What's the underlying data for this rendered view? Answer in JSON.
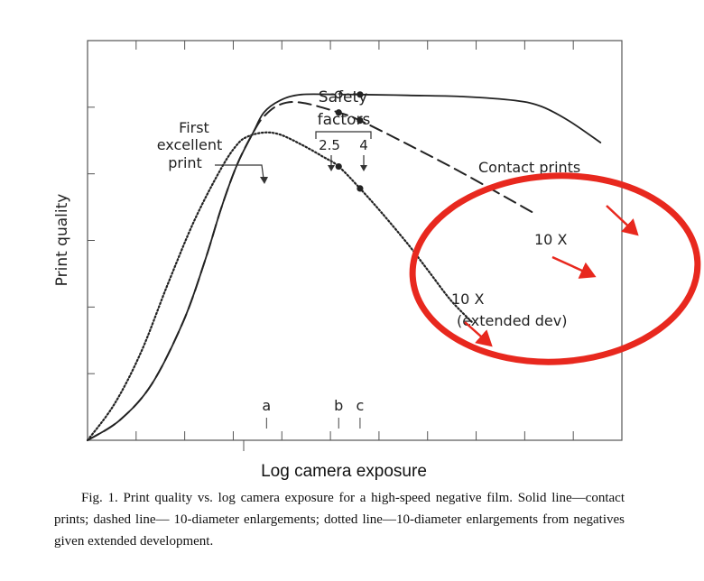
{
  "chart_data": {
    "type": "line",
    "xlabel": "Log camera exposure",
    "ylabel": "Print quality",
    "xlim": [
      0,
      100
    ],
    "ylim": [
      0,
      100
    ],
    "x_markers": [
      {
        "label": "a",
        "x": 33.5
      },
      {
        "label": "b",
        "x": 47
      },
      {
        "label": "c",
        "x": 51
      }
    ],
    "safety_factors": {
      "title_line1": "Safety",
      "title_line2": "factors",
      "values": [
        "2.5",
        "4"
      ]
    },
    "first_print_note": {
      "line1": "First",
      "line2": "excellent",
      "line3": "print"
    },
    "series": [
      {
        "name": "Contact prints",
        "style": "solid",
        "x": [
          0,
          6,
          12,
          18,
          22,
          25,
          28,
          31,
          33,
          36,
          40,
          47,
          51,
          60,
          70,
          80,
          85,
          90,
          96
        ],
        "y": [
          0,
          5,
          14,
          30,
          45,
          58,
          69,
          77,
          82,
          85,
          86.5,
          86.5,
          86.5,
          86.3,
          86,
          85,
          83.5,
          80,
          74.5
        ]
      },
      {
        "name": "10 X",
        "style": "dashed",
        "x": [
          0,
          6,
          12,
          18,
          22,
          25,
          28,
          31,
          33,
          36,
          40,
          47,
          51,
          60,
          70,
          80,
          84
        ],
        "y": [
          0,
          5,
          14,
          30,
          45,
          58,
          69,
          77,
          81,
          84,
          84.5,
          82,
          80,
          74,
          67,
          59.5,
          56.5
        ]
      },
      {
        "name": "10 X\n(extended dev)",
        "style": "dotted",
        "x": [
          0,
          5,
          10,
          15,
          20,
          25,
          28,
          30,
          33,
          36,
          40,
          44,
          47,
          51,
          55,
          60,
          64,
          68,
          72
        ],
        "y": [
          0,
          9,
          22,
          39,
          55,
          68,
          74,
          76,
          77,
          76.5,
          74,
          71,
          68.5,
          63,
          57,
          49,
          42,
          35,
          29.5
        ]
      }
    ],
    "series_labels": [
      "Contact prints",
      "10 X",
      "10 X",
      "(extended dev)"
    ]
  },
  "caption": "Fig. 1. Print quality vs. log camera exposure for a high-speed negative film. Solid line—contact prints; dashed line— 10-diameter enlargements; dotted line—10-diameter enlargements from negatives given extended development.",
  "annotation": {
    "color": "#e8281e",
    "shape": "ellipse",
    "arrows": 4
  },
  "colors": {
    "ink": "#222222",
    "highlight": "#e8281e"
  }
}
